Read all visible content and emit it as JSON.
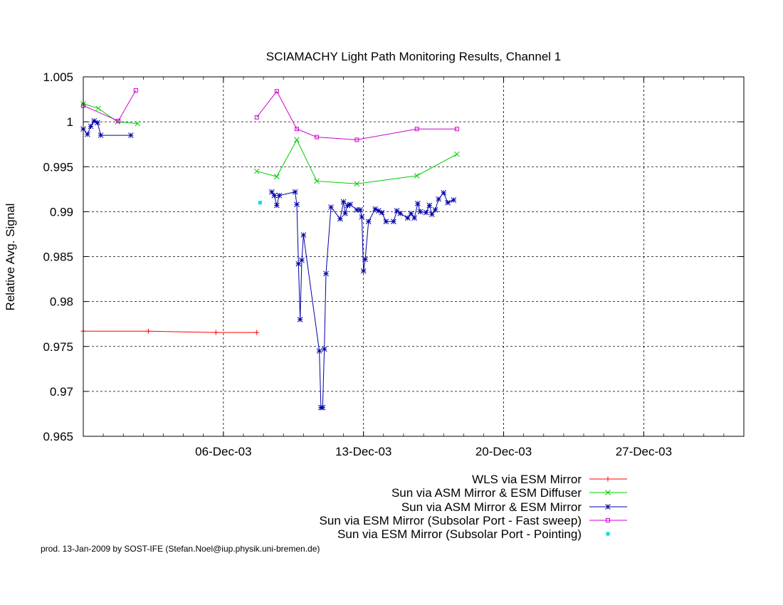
{
  "chart_data": {
    "type": "line",
    "title": "SCIAMACHY Light Path Monitoring Results, Channel 1",
    "xlabel": "",
    "ylabel": "Relative Avg. Signal",
    "x_axis": "date",
    "xlim": [
      "2003-11-29",
      "2004-01-01"
    ],
    "ylim": [
      0.965,
      1.005
    ],
    "yticks": [
      0.965,
      0.97,
      0.975,
      0.98,
      0.985,
      0.99,
      0.995,
      1,
      1.005
    ],
    "ytick_labels": [
      "0.965",
      "0.97",
      "0.975",
      "0.98",
      "0.985",
      "0.99",
      "0.995",
      "1",
      "1.005"
    ],
    "xticks": [
      "2003-12-06",
      "2003-12-13",
      "2003-12-20",
      "2003-12-27"
    ],
    "xtick_labels": [
      "06-Dec-03",
      "13-Dec-03",
      "20-Dec-03",
      "27-Dec-03"
    ],
    "grid": true,
    "legend_position": "bottom-right",
    "series": [
      {
        "name": "WLS via ESM Mirror",
        "color": "#ff0000",
        "marker": "plus",
        "line": true,
        "segments": [
          [
            [
              "2003-11-29T00:00",
              0.9767
            ],
            [
              "2003-12-02T06:00",
              0.9767
            ],
            [
              "2003-12-05T15:00",
              0.97655
            ],
            [
              "2003-12-07T16:00",
              0.97655
            ]
          ]
        ]
      },
      {
        "name": "Sun via ASM Mirror & ESM Diffuser",
        "color": "#00cc00",
        "marker": "x",
        "line": true,
        "segments": [
          [
            [
              "2003-11-29T00:00",
              1.002
            ],
            [
              "2003-11-29T18:00",
              1.0015
            ],
            [
              "2003-11-30T17:00",
              1.0
            ],
            [
              "2003-12-01T17:00",
              0.9998
            ]
          ],
          [
            [
              "2003-12-07T16:00",
              0.9945
            ],
            [
              "2003-12-08T16:00",
              0.9939
            ],
            [
              "2003-12-09T16:00",
              0.998
            ],
            [
              "2003-12-10T16:00",
              0.9934
            ],
            [
              "2003-12-12T16:00",
              0.9931
            ],
            [
              "2003-12-15T16:00",
              0.994
            ],
            [
              "2003-12-17T16:00",
              0.9964
            ]
          ]
        ]
      },
      {
        "name": "Sun via ASM Mirror & ESM Mirror",
        "color": "#0000aa",
        "marker": "star",
        "line": true,
        "segments": [
          [
            [
              "2003-11-29T00:00",
              0.9992
            ],
            [
              "2003-11-29T05:00",
              0.9986
            ],
            [
              "2003-11-29T09:00",
              0.9995
            ],
            [
              "2003-11-29T13:00",
              1.0001
            ],
            [
              "2003-11-29T17:00",
              0.9999
            ],
            [
              "2003-11-29T21:00",
              0.9985
            ],
            [
              "2003-12-01T09:00",
              0.9985
            ]
          ],
          [
            [
              "2003-12-08T10:00",
              0.9922
            ],
            [
              "2003-12-08T13:00",
              0.9918
            ],
            [
              "2003-12-08T16:00",
              0.9907
            ],
            [
              "2003-12-08T19:00",
              0.9918
            ],
            [
              "2003-12-09T14:00",
              0.9922
            ],
            [
              "2003-12-09T16:00",
              0.9908
            ],
            [
              "2003-12-09T18:00",
              0.9842
            ],
            [
              "2003-12-09T20:00",
              0.978
            ],
            [
              "2003-12-09T22:00",
              0.9846
            ],
            [
              "2003-12-10T00:00",
              0.9874
            ],
            [
              "2003-12-10T19:00",
              0.9745
            ],
            [
              "2003-12-10T21:00",
              0.9682
            ],
            [
              "2003-12-10T23:00",
              0.9682
            ],
            [
              "2003-12-11T01:00",
              0.9747
            ],
            [
              "2003-12-11T03:00",
              0.9831
            ],
            [
              "2003-12-11T09:00",
              0.9905
            ],
            [
              "2003-12-11T20:00",
              0.9892
            ],
            [
              "2003-12-12T00:00",
              0.9911
            ],
            [
              "2003-12-12T02:00",
              0.9898
            ],
            [
              "2003-12-12T05:00",
              0.9907
            ],
            [
              "2003-12-12T08:00",
              0.9908
            ],
            [
              "2003-12-12T16:00",
              0.9902
            ],
            [
              "2003-12-12T20:00",
              0.9902
            ],
            [
              "2003-12-12T22:00",
              0.9894
            ],
            [
              "2003-12-13T00:00",
              0.9834
            ],
            [
              "2003-12-13T02:00",
              0.9847
            ],
            [
              "2003-12-13T06:00",
              0.9889
            ],
            [
              "2003-12-13T14:00",
              0.9903
            ],
            [
              "2003-12-13T18:00",
              0.9901
            ],
            [
              "2003-12-13T22:00",
              0.9899
            ],
            [
              "2003-12-14T03:00",
              0.9889
            ],
            [
              "2003-12-14T12:00",
              0.9889
            ],
            [
              "2003-12-14T16:00",
              0.9901
            ],
            [
              "2003-12-14T20:00",
              0.9898
            ],
            [
              "2003-12-15T05:00",
              0.9893
            ],
            [
              "2003-12-15T09:00",
              0.9898
            ],
            [
              "2003-12-15T13:00",
              0.9893
            ],
            [
              "2003-12-15T17:00",
              0.9909
            ],
            [
              "2003-12-15T20:00",
              0.99
            ],
            [
              "2003-12-16T03:00",
              0.9899
            ],
            [
              "2003-12-16T07:00",
              0.9907
            ],
            [
              "2003-12-16T10:00",
              0.9897
            ],
            [
              "2003-12-16T14:00",
              0.9902
            ],
            [
              "2003-12-16T18:00",
              0.9914
            ],
            [
              "2003-12-17T00:00",
              0.9921
            ],
            [
              "2003-12-17T05:00",
              0.991
            ],
            [
              "2003-12-17T12:00",
              0.9913
            ]
          ]
        ]
      },
      {
        "name": "Sun via ESM Mirror (Subsolar Port - Fast sweep)",
        "color": "#cc00cc",
        "marker": "square",
        "line": true,
        "segments": [
          [
            [
              "2003-11-29T00:00",
              1.0018
            ],
            [
              "2003-11-30T18:00",
              1.0001
            ],
            [
              "2003-12-01T15:00",
              1.0035
            ]
          ],
          [
            [
              "2003-12-07T16:00",
              1.0005
            ],
            [
              "2003-12-08T16:00",
              1.0034
            ],
            [
              "2003-12-09T16:00",
              0.9992
            ],
            [
              "2003-12-10T16:00",
              0.9983
            ],
            [
              "2003-12-12T16:00",
              0.998
            ],
            [
              "2003-12-15T16:00",
              0.9992
            ],
            [
              "2003-12-17T16:00",
              0.9992
            ]
          ]
        ]
      },
      {
        "name": "Sun via ESM Mirror (Subsolar Port - Pointing)",
        "color": "#00dddd",
        "marker": "point",
        "line": false,
        "segments": [
          [
            [
              "2003-12-07T20:00",
              0.991
            ]
          ]
        ]
      }
    ]
  },
  "footer": "prod. 13-Jan-2009 by SOST-IFE (Stefan.Noel@iup.physik.uni-bremen.de)"
}
